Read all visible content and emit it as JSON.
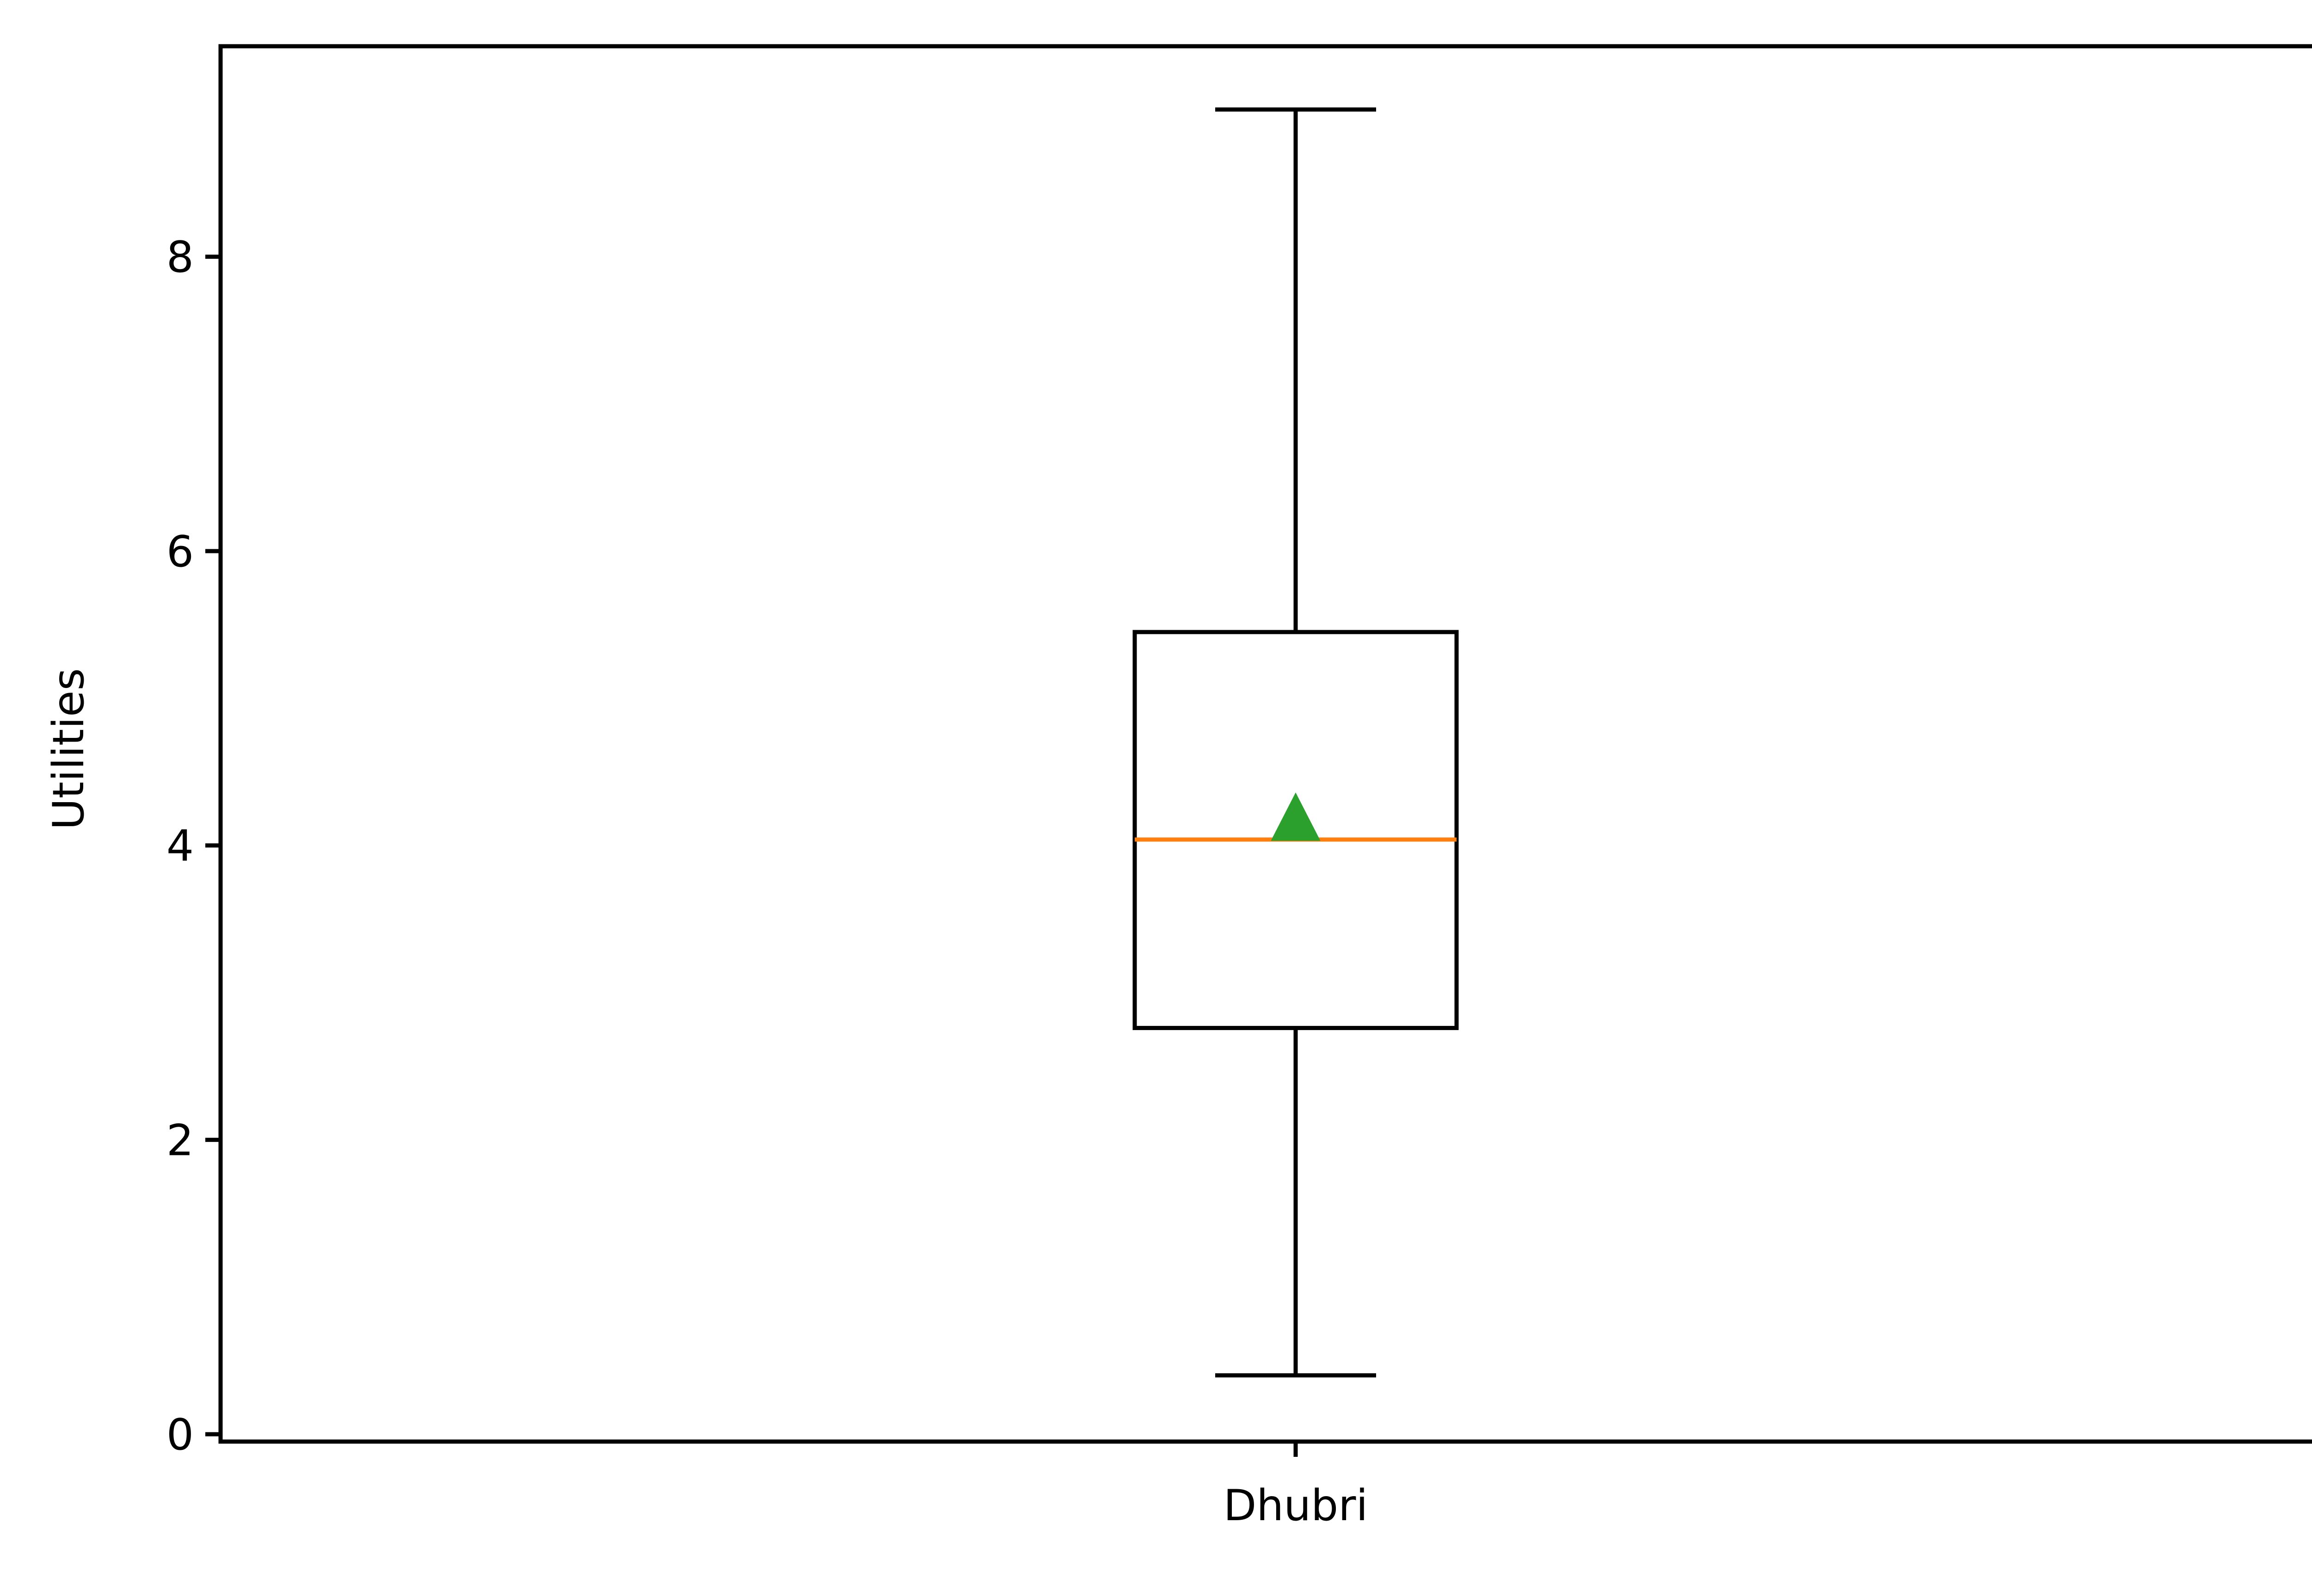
{
  "chart_data": {
    "type": "box",
    "xlabel": "",
    "ylabel": "Utilities",
    "ylim": [
      -0.05,
      9.43
    ],
    "yticks": [
      0,
      2,
      4,
      6,
      8
    ],
    "categories": [
      "Dhubri"
    ],
    "boxes": [
      {
        "category": "Dhubri",
        "whisker_low": 0.4,
        "q1": 2.76,
        "median": 4.04,
        "q3": 5.45,
        "whisker_high": 9.0,
        "mean": 4.19
      }
    ],
    "grid": false,
    "colors": {
      "box": "#000000",
      "median": "#ff7f0e",
      "mean": "#2ca02c"
    }
  }
}
